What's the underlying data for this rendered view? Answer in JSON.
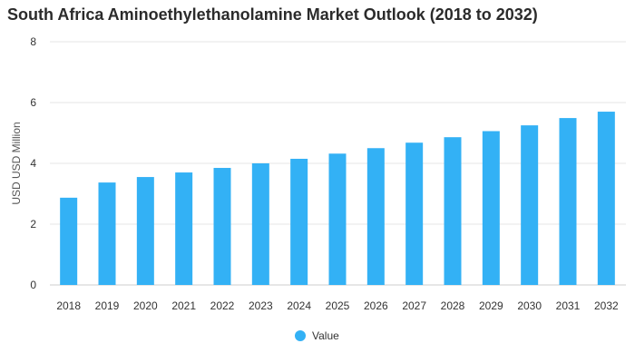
{
  "chart_data": {
    "type": "bar",
    "title": "South Africa Aminoethylethanolamine Market Outlook (2018 to 2032)",
    "xlabel": "",
    "ylabel": "USD USD Million",
    "ylim": [
      0,
      8
    ],
    "yticks": [
      0,
      2,
      4,
      6,
      8
    ],
    "grid": true,
    "legend": "bottom-center",
    "categories": [
      "2018",
      "2019",
      "2020",
      "2021",
      "2022",
      "2023",
      "2024",
      "2025",
      "2026",
      "2027",
      "2028",
      "2029",
      "2030",
      "2031",
      "2032"
    ],
    "series": [
      {
        "name": "Value",
        "color": "#33b1f5",
        "values": [
          2.87,
          3.37,
          3.55,
          3.7,
          3.85,
          4.0,
          4.15,
          4.32,
          4.5,
          4.68,
          4.86,
          5.06,
          5.25,
          5.49,
          5.7
        ]
      }
    ]
  }
}
